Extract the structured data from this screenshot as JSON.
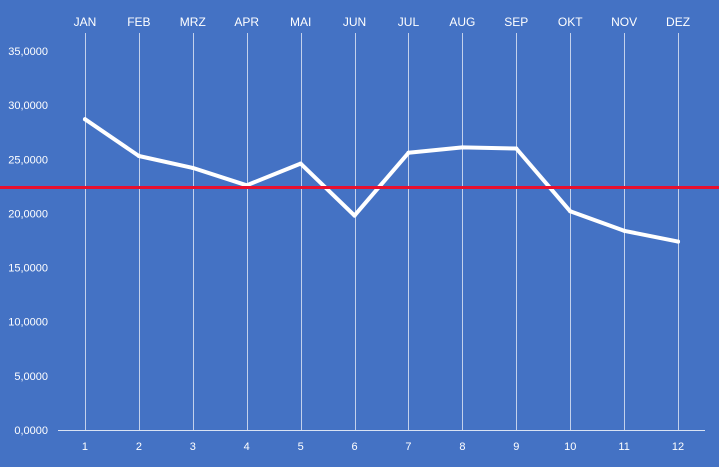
{
  "chart_data": {
    "type": "line",
    "title": "",
    "xlabel": "",
    "ylabel": "",
    "top_labels": [
      "JAN",
      "FEB",
      "MRZ",
      "APR",
      "MAI",
      "JUN",
      "JUL",
      "AUG",
      "SEP",
      "OKT",
      "NOV",
      "DEZ"
    ],
    "x": [
      1,
      2,
      3,
      4,
      5,
      6,
      7,
      8,
      9,
      10,
      11,
      12
    ],
    "x_tick_labels": [
      "1",
      "2",
      "3",
      "4",
      "5",
      "6",
      "7",
      "8",
      "9",
      "10",
      "11",
      "12"
    ],
    "ylim": [
      0,
      35000
    ],
    "y_ticks": [
      0,
      5000,
      10000,
      15000,
      20000,
      25000,
      30000,
      35000
    ],
    "y_tick_labels": [
      "0,0000",
      "5,0000",
      "10,0000",
      "15,0000",
      "20,0000",
      "25,0000",
      "30,0000",
      "35,0000"
    ],
    "grid": "vertical",
    "series": [
      {
        "values": [
          28700,
          25300,
          24200,
          22600,
          24600,
          19800,
          25600,
          26100,
          26000,
          20200,
          18400,
          17400
        ]
      }
    ],
    "reference_line": {
      "value": 22400
    },
    "colors": {
      "background": "#4472C4",
      "line": "#FFFFFF",
      "reference_line": "#E8102E",
      "grid": "#D9E2F3",
      "text": "#FFFFFF"
    }
  }
}
